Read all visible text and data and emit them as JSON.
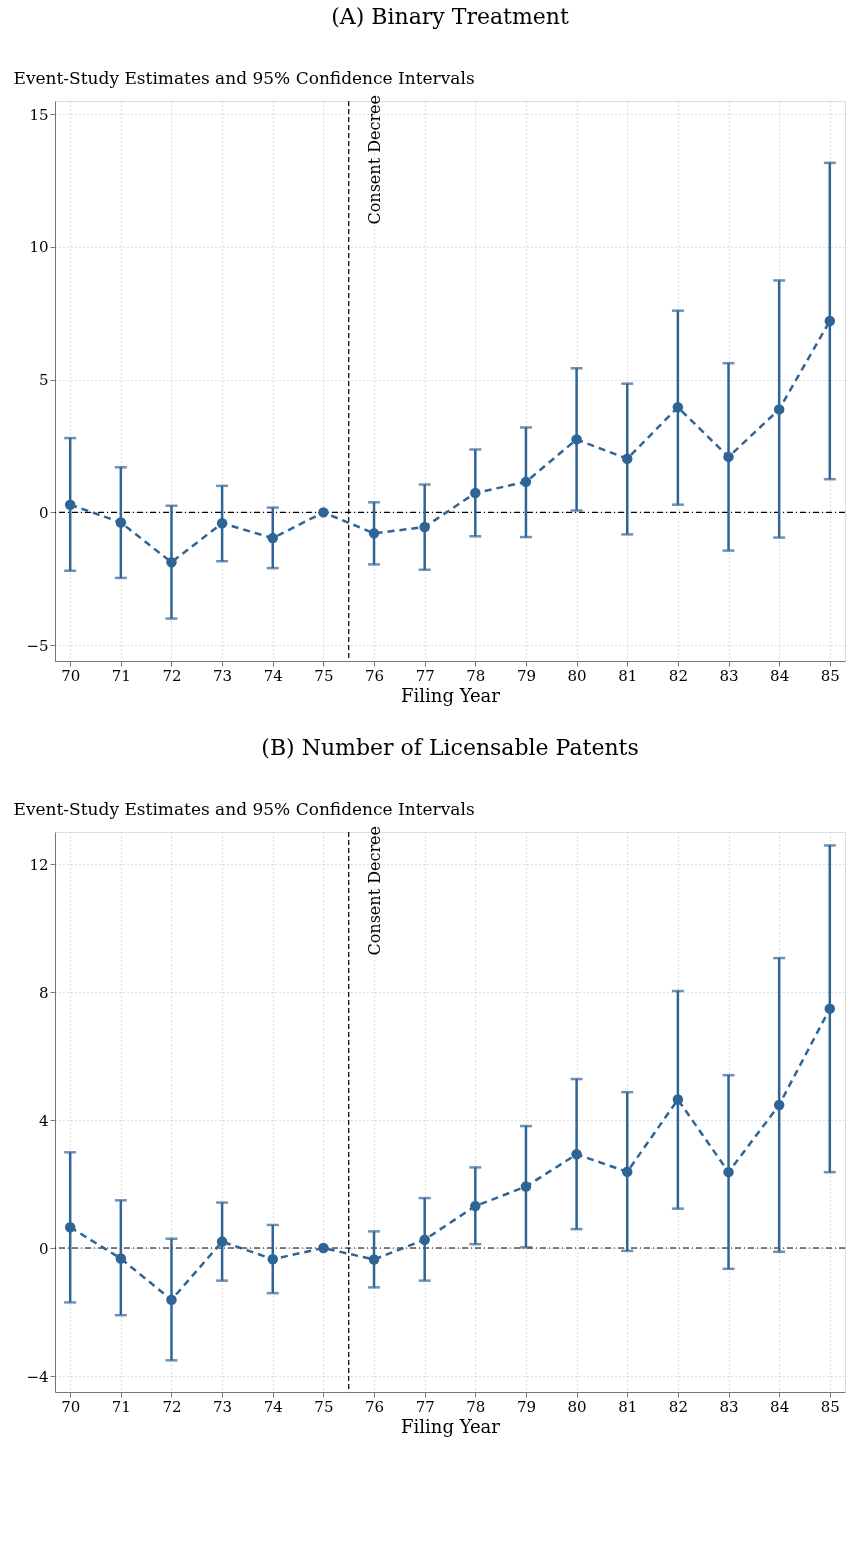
{
  "chart_data": [
    {
      "type": "line",
      "title": "(A) Binary Treatment",
      "ylabel": "Event-Study Estimates and 95% Confidence Intervals",
      "xlabel": "Filing Year",
      "x": [
        70,
        71,
        72,
        73,
        74,
        75,
        76,
        77,
        78,
        79,
        80,
        81,
        82,
        83,
        84,
        85
      ],
      "series": [
        {
          "color": "#2f6497",
          "values": [
            0.29,
            -0.38,
            -1.88,
            -0.41,
            -0.97,
            0,
            -0.79,
            -0.55,
            0.73,
            1.15,
            2.75,
            2.02,
            3.96,
            2.09,
            3.88,
            7.21
          ],
          "errors": [
            [
              -2.2,
              2.8
            ],
            [
              -2.47,
              1.7
            ],
            [
              -4.0,
              0.25
            ],
            [
              -1.84,
              1.0
            ],
            [
              -2.1,
              0.18
            ],
            null,
            [
              -1.96,
              0.38
            ],
            [
              -2.16,
              1.05
            ],
            [
              -0.9,
              2.37
            ],
            [
              -0.93,
              3.2
            ],
            [
              0.07,
              5.43
            ],
            [
              -0.83,
              4.85
            ],
            [
              0.29,
              7.6
            ],
            [
              -1.44,
              5.62
            ],
            [
              -0.95,
              8.74
            ],
            [
              1.25,
              13.17
            ]
          ]
        }
      ],
      "xlim": [
        69.7,
        85.3
      ],
      "xticks": [
        70,
        71,
        72,
        73,
        74,
        75,
        76,
        77,
        78,
        79,
        80,
        81,
        82,
        83,
        84,
        85
      ],
      "ylim": [
        -5.6,
        15.5
      ],
      "yticks": [
        -5,
        0,
        5,
        10,
        15
      ],
      "ref_lines": [
        {
          "axis": "x",
          "value": 75.5,
          "label": "Consent Decree",
          "line_style": "dashed",
          "color": "#000000"
        },
        {
          "axis": "y",
          "value": 0,
          "label": null,
          "line_style": "dashdot",
          "color": "#000000"
        }
      ],
      "grid": true,
      "marker": "circle",
      "line_style": "dashed"
    },
    {
      "type": "line",
      "title": "(B) Number of Licensable Patents",
      "ylabel": "Event-Study Estimates and 95% Confidence Intervals",
      "xlabel": "Filing Year",
      "x": [
        70,
        71,
        72,
        73,
        74,
        75,
        76,
        77,
        78,
        79,
        80,
        81,
        82,
        83,
        84,
        85
      ],
      "series": [
        {
          "color": "#2f6497",
          "values": [
            0.65,
            -0.33,
            -1.62,
            0.2,
            -0.35,
            0,
            -0.36,
            0.26,
            1.31,
            1.92,
            2.93,
            2.38,
            4.64,
            2.37,
            4.47,
            7.48
          ],
          "errors": [
            [
              -1.7,
              2.99
            ],
            [
              -2.1,
              1.49
            ],
            [
              -3.51,
              0.29
            ],
            [
              -1.02,
              1.42
            ],
            [
              -1.41,
              0.72
            ],
            null,
            [
              -1.23,
              0.52
            ],
            [
              -1.02,
              1.56
            ],
            [
              0.12,
              2.52
            ],
            [
              0.02,
              3.81
            ],
            [
              0.59,
              5.28
            ],
            [
              -0.09,
              4.87
            ],
            [
              1.23,
              8.03
            ],
            [
              -0.65,
              5.4
            ],
            [
              -0.12,
              9.06
            ],
            [
              2.37,
              12.58
            ]
          ]
        }
      ],
      "xlim": [
        69.7,
        85.3
      ],
      "xticks": [
        70,
        71,
        72,
        73,
        74,
        75,
        76,
        77,
        78,
        79,
        80,
        81,
        82,
        83,
        84,
        85
      ],
      "ylim": [
        -4.5,
        13
      ],
      "yticks": [
        -4,
        0,
        4,
        8,
        12
      ],
      "ref_lines": [
        {
          "axis": "x",
          "value": 75.5,
          "label": "Consent Decree",
          "line_style": "dashed",
          "color": "#000000"
        },
        {
          "axis": "y",
          "value": 0,
          "label": null,
          "line_style": "dashdot",
          "color": "#000000"
        }
      ],
      "grid": true,
      "marker": "circle",
      "line_style": "dashed"
    }
  ]
}
